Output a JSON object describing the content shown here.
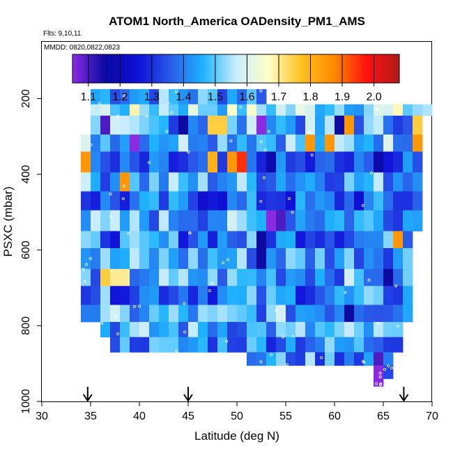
{
  "chart_data": {
    "type": "heatmap",
    "title": "ATOM1 North_America OADensity_PM1_AMS",
    "flights_label": "Flts: 9,10,11",
    "dates_label": "MMDD: 0820,0822,0823",
    "xlabel": "Latitude (deg N)",
    "ylabel": "PSXC (mbar)",
    "xlim": [
      30,
      70
    ],
    "ylim": [
      1000,
      50
    ],
    "x_ticks": [
      "30",
      "35",
      "40",
      "45",
      "50",
      "55",
      "60",
      "65",
      "70"
    ],
    "y_ticks": [
      "200",
      "400",
      "600",
      "800",
      "1000"
    ],
    "colorbar": {
      "range": [
        1.05,
        2.08
      ],
      "ticks": [
        "1.1",
        "1.2",
        "1.3",
        "1.4",
        "1.5",
        "1.6",
        "1.7",
        "1.8",
        "1.9",
        "2.0"
      ],
      "colors": [
        "#8a2be2",
        "#0a0aa0",
        "#1010d8",
        "#2a5ae8",
        "#1eb4ff",
        "#c8ecff",
        "#ffffc8",
        "#ffc020",
        "#ff8a00",
        "#ff1010",
        "#b01a1a"
      ]
    },
    "arrows_lat": [
      34.7,
      45.0,
      67.1
    ],
    "rows": [
      {
        "p": [
          175,
          215
        ],
        "lats": [
          35,
          53
        ],
        "base": 1.45
      },
      {
        "p": [
          215,
          245
        ],
        "lats": [
          35,
          70
        ],
        "base": 1.55
      },
      {
        "p": [
          245,
          295
        ],
        "lats": [
          35,
          69
        ],
        "base": 1.45
      },
      {
        "p": [
          295,
          340
        ],
        "lats": [
          34,
          69
        ],
        "base": 1.5
      },
      {
        "p": [
          340,
          395
        ],
        "lats": [
          34,
          69
        ],
        "base": 1.3
      },
      {
        "p": [
          395,
          445
        ],
        "lats": [
          34,
          69
        ],
        "base": 1.45
      },
      {
        "p": [
          445,
          495
        ],
        "lats": [
          34,
          69
        ],
        "base": 1.35
      },
      {
        "p": [
          495,
          550
        ],
        "lats": [
          34,
          69
        ],
        "base": 1.45
      },
      {
        "p": [
          550,
          595
        ],
        "lats": [
          34,
          68
        ],
        "base": 1.4
      },
      {
        "p": [
          595,
          650
        ],
        "lats": [
          34,
          68
        ],
        "base": 1.45
      },
      {
        "p": [
          650,
          695
        ],
        "lats": [
          34,
          68
        ],
        "base": 1.45
      },
      {
        "p": [
          695,
          745
        ],
        "lats": [
          34,
          68
        ],
        "base": 1.4
      },
      {
        "p": [
          745,
          790
        ],
        "lats": [
          34,
          68
        ],
        "base": 1.45
      },
      {
        "p": [
          790,
          830
        ],
        "lats": [
          36,
          67
        ],
        "base": 1.45
      },
      {
        "p": [
          830,
          870
        ],
        "lats": [
          37,
          67
        ],
        "base": 1.42
      },
      {
        "p": [
          870,
          905
        ],
        "lats": [
          51,
          66
        ],
        "base": 1.42
      },
      {
        "p": [
          905,
          940
        ],
        "lats": [
          64,
          66
        ],
        "base": 1.2
      },
      {
        "p": [
          940,
          960
        ],
        "lats": [
          64,
          65
        ],
        "base": 1.15
      }
    ],
    "hotspots": [
      {
        "lat": 36.3,
        "p": 245,
        "v": 1.1
      },
      {
        "lat": 44.7,
        "p": 245,
        "v": 1.15
      },
      {
        "lat": 47.5,
        "p": 245,
        "v": 1.75
      },
      {
        "lat": 48.5,
        "p": 245,
        "v": 1.75
      },
      {
        "lat": 52.5,
        "p": 245,
        "v": 1.05
      },
      {
        "lat": 60.5,
        "p": 245,
        "v": 1.15
      },
      {
        "lat": 61.5,
        "p": 245,
        "v": 1.85
      },
      {
        "lat": 68.5,
        "p": 245,
        "v": 1.75
      },
      {
        "lat": 34.7,
        "p": 340,
        "v": 1.85
      },
      {
        "lat": 47.5,
        "p": 340,
        "v": 1.8
      },
      {
        "lat": 49.5,
        "p": 340,
        "v": 1.85
      },
      {
        "lat": 50.5,
        "p": 340,
        "v": 1.95
      },
      {
        "lat": 39.3,
        "p": 295,
        "v": 1.05
      },
      {
        "lat": 57.5,
        "p": 295,
        "v": 1.85
      },
      {
        "lat": 59.5,
        "p": 295,
        "v": 1.85
      },
      {
        "lat": 68.5,
        "p": 295,
        "v": 1.85
      },
      {
        "lat": 38.5,
        "p": 395,
        "v": 1.85
      },
      {
        "lat": 53.5,
        "p": 495,
        "v": 1.05
      },
      {
        "lat": 54.5,
        "p": 495,
        "v": 1.1
      },
      {
        "lat": 52.5,
        "p": 550,
        "v": 1.15
      },
      {
        "lat": 66.3,
        "p": 550,
        "v": 1.85
      },
      {
        "lat": 36.5,
        "p": 650,
        "v": 1.75
      },
      {
        "lat": 37.5,
        "p": 650,
        "v": 1.7
      },
      {
        "lat": 38.5,
        "p": 650,
        "v": 1.7
      },
      {
        "lat": 52.5,
        "p": 595,
        "v": 1.15
      },
      {
        "lat": 65.5,
        "p": 650,
        "v": 1.15
      },
      {
        "lat": 61.5,
        "p": 745,
        "v": 1.15
      },
      {
        "lat": 64.5,
        "p": 870,
        "v": 1.1
      },
      {
        "lat": 64.5,
        "p": 905,
        "v": 1.05
      }
    ]
  }
}
